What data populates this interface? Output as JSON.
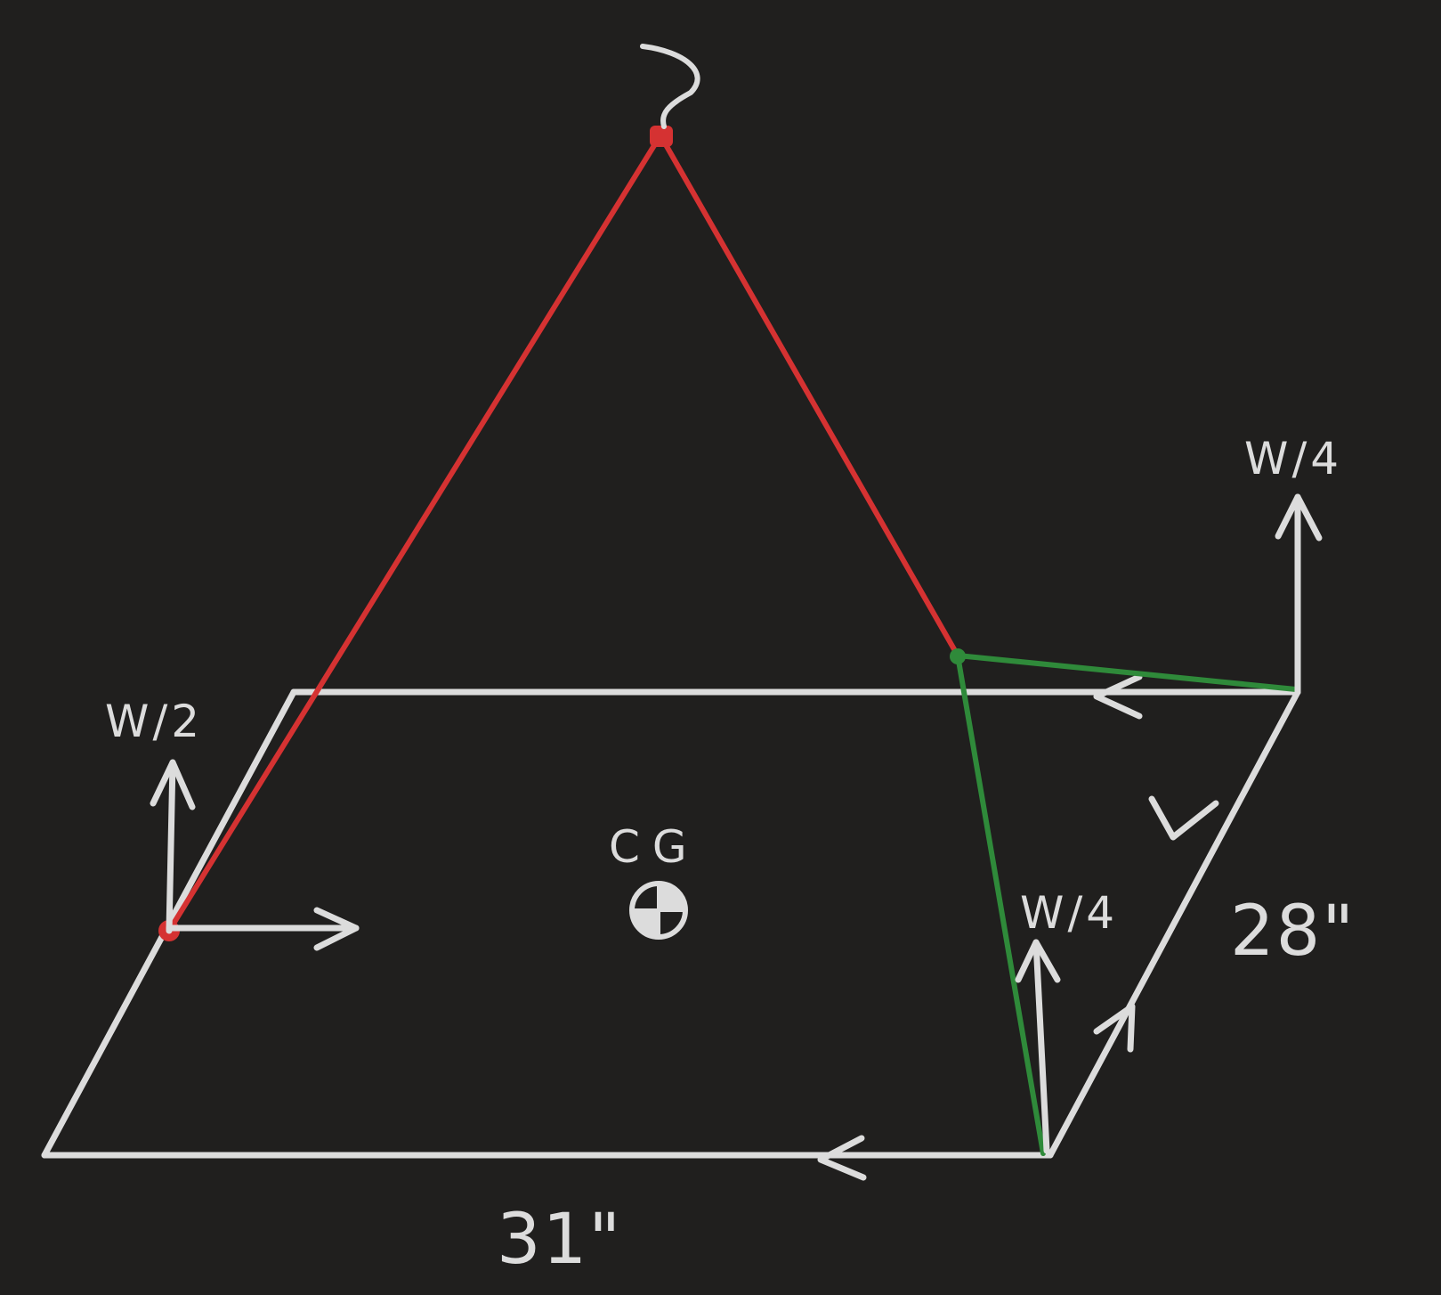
{
  "colors": {
    "background": "#201f1e",
    "sketch": "#dcdcdc",
    "red_line": "#d53232",
    "green_line": "#2f8a3a"
  },
  "labels": {
    "hook": "~",
    "load_left": "W/2",
    "load_right_back": "W/4",
    "load_right_front": "W/4",
    "center_of_gravity": "CG",
    "dim_width": "31\"",
    "dim_depth": "28\""
  },
  "icons": {
    "center_of_gravity": "center-of-gravity-icon"
  }
}
